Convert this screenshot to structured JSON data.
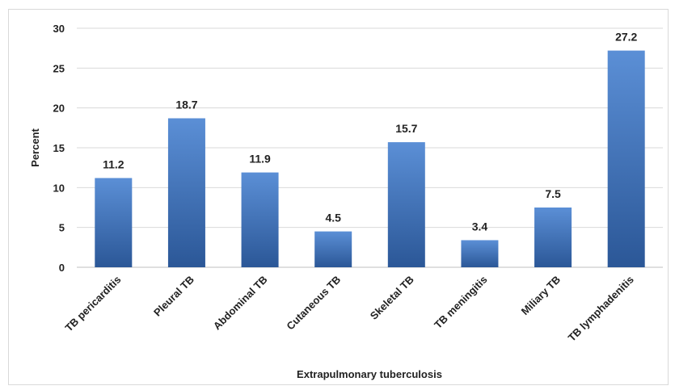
{
  "chart_data": {
    "type": "bar",
    "categories": [
      "TB pericarditis",
      "Pleural TB",
      "Abdominal TB",
      "Cutaneous TB",
      "Skeletal TB",
      "TB meningitis",
      "Miliary TB",
      "TB lymphadenitis"
    ],
    "values": [
      11.2,
      18.7,
      11.9,
      4.5,
      15.7,
      3.4,
      7.5,
      27.2
    ],
    "data_labels": [
      "11.2",
      "18.7",
      "11.9",
      "4.5",
      "15.7",
      "3.4",
      "7.5",
      "27.2"
    ],
    "title": "",
    "xlabel": "Extrapulmonary tuberculosis",
    "ylabel": "Percent",
    "ylim": [
      0,
      30
    ],
    "yticks": [
      "0",
      "5",
      "10",
      "15",
      "20",
      "25",
      "30"
    ],
    "grid": true,
    "legend": "none",
    "colors": {
      "bar_light": "#5b8fd6",
      "bar_dark": "#2b5797",
      "grid": "#d9d9d9",
      "axis": "#bfbfbf"
    }
  }
}
